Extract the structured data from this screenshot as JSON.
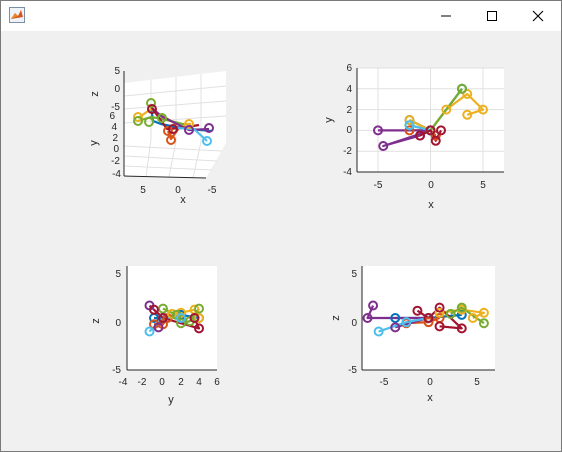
{
  "window": {
    "icon": "matlab-icon",
    "buttons": [
      "minimize-icon",
      "maximize-icon",
      "close-icon"
    ]
  },
  "plots": {
    "p1": {
      "z_label": "z",
      "y_label": "y",
      "x_label": "x",
      "z_ticks": [
        "5",
        "0",
        "-5"
      ],
      "y_ticks": [
        "6",
        "4",
        "2",
        "0",
        "-2",
        "-4"
      ],
      "x_ticks": [
        "5",
        "0",
        "-5"
      ]
    },
    "p2": {
      "y_label": "y",
      "x_label": "x",
      "y_ticks": [
        "6",
        "4",
        "2",
        "0",
        "-2",
        "-4"
      ],
      "x_ticks": [
        "-5",
        "0",
        "5"
      ]
    },
    "p3": {
      "z_label": "z",
      "y_label": "y",
      "z_ticks": [
        "5",
        "0",
        "-5"
      ],
      "y_ticks": [
        "-4",
        "-2",
        "0",
        "2",
        "4",
        "6"
      ]
    },
    "p4": {
      "z_label": "z",
      "x_label": "x",
      "z_ticks": [
        "5",
        "0",
        "-5"
      ],
      "x_ticks": [
        "-5",
        "0",
        "5"
      ]
    }
  },
  "chart_data": [
    {
      "type": "line",
      "view": "3d",
      "xlabel": "x",
      "ylabel": "y",
      "zlabel": "z",
      "xlim": [
        -6,
        7
      ],
      "ylim": [
        -4,
        6
      ],
      "zlim": [
        -5,
        5
      ],
      "grid": true
    },
    {
      "type": "line",
      "view": "xy",
      "xlabel": "x",
      "ylabel": "y",
      "xlim": [
        -7,
        7
      ],
      "ylim": [
        -4,
        6
      ],
      "grid": true,
      "series": [
        {
          "color": "#0072BD",
          "points": [
            [
              -2,
              1
            ],
            [
              0,
              0
            ],
            [
              3,
              4
            ]
          ]
        },
        {
          "color": "#D95319",
          "points": [
            [
              -2,
              0
            ],
            [
              0,
              0
            ],
            [
              0.5,
              -0.5
            ]
          ]
        },
        {
          "color": "#EDB120",
          "points": [
            [
              -2,
              1
            ],
            [
              0,
              0
            ],
            [
              1.5,
              2
            ],
            [
              3.5,
              3.5
            ],
            [
              5,
              2
            ],
            [
              3.5,
              1.5
            ]
          ]
        },
        {
          "color": "#7E2F8E",
          "points": [
            [
              -5,
              0
            ],
            [
              0,
              0
            ],
            [
              -4.5,
              -1.5
            ],
            [
              -1,
              -0.5
            ]
          ]
        },
        {
          "color": "#77AC30",
          "points": [
            [
              -2,
              0.5
            ],
            [
              0,
              0
            ],
            [
              3,
              4
            ]
          ]
        },
        {
          "color": "#4DBEEE",
          "points": [
            [
              -2,
              0.5
            ],
            [
              0,
              0
            ]
          ]
        },
        {
          "color": "#A2142F",
          "points": [
            [
              1,
              0
            ],
            [
              0.5,
              -1
            ],
            [
              0,
              0
            ],
            [
              -1,
              -0.5
            ]
          ]
        }
      ]
    },
    {
      "type": "line",
      "view": "yz",
      "xlabel": "y",
      "ylabel": "z",
      "xlim": [
        -4,
        6
      ],
      "ylim": [
        -5,
        5
      ],
      "series": [
        {
          "color": "#0072BD",
          "points": [
            [
              -1,
              0
            ],
            [
              0,
              0
            ],
            [
              2,
              0.3
            ],
            [
              4,
              0
            ]
          ]
        },
        {
          "color": "#D95319",
          "points": [
            [
              -1,
              -0.6
            ],
            [
              0,
              -0.6
            ],
            [
              0.5,
              0
            ]
          ]
        },
        {
          "color": "#EDB120",
          "points": [
            [
              1,
              0.4
            ],
            [
              2,
              0.5
            ],
            [
              3.5,
              0.8
            ],
            [
              4,
              0
            ]
          ]
        },
        {
          "color": "#7E2F8E",
          "points": [
            [
              -1.5,
              1.2
            ],
            [
              0,
              0
            ],
            [
              -0.5,
              -0.9
            ]
          ]
        },
        {
          "color": "#77AC30",
          "points": [
            [
              0,
              0.9
            ],
            [
              1.5,
              0.3
            ],
            [
              2,
              -0.5
            ],
            [
              3,
              -0.3
            ],
            [
              4,
              0.9
            ]
          ]
        },
        {
          "color": "#4DBEEE",
          "points": [
            [
              -1.5,
              -1.3
            ],
            [
              0,
              0
            ],
            [
              2,
              0
            ]
          ]
        },
        {
          "color": "#A2142F",
          "points": [
            [
              -1,
              0.8
            ],
            [
              0,
              0
            ],
            [
              4,
              -1
            ],
            [
              3.5,
              0
            ]
          ]
        }
      ]
    },
    {
      "type": "line",
      "view": "xz",
      "xlabel": "x",
      "ylabel": "z",
      "xlim": [
        -6,
        6
      ],
      "ylim": [
        -5,
        5
      ],
      "series": [
        {
          "color": "#0072BD",
          "points": [
            [
              -3,
              0
            ],
            [
              0,
              0
            ],
            [
              3,
              0.3
            ]
          ]
        },
        {
          "color": "#D95319",
          "points": [
            [
              -2,
              -0.5
            ],
            [
              0,
              -0.4
            ],
            [
              1,
              0
            ]
          ]
        },
        {
          "color": "#EDB120",
          "points": [
            [
              1,
              0.5
            ],
            [
              3,
              0.8
            ],
            [
              5,
              0.5
            ],
            [
              4,
              0
            ]
          ]
        },
        {
          "color": "#7E2F8E",
          "points": [
            [
              -5,
              1.2
            ],
            [
              -5.5,
              0
            ],
            [
              0,
              0
            ],
            [
              -3,
              -0.9
            ]
          ]
        },
        {
          "color": "#77AC30",
          "points": [
            [
              2,
              0.4
            ],
            [
              3,
              1
            ],
            [
              5,
              -0.5
            ]
          ]
        },
        {
          "color": "#4DBEEE",
          "points": [
            [
              -4.5,
              -1.3
            ],
            [
              -2,
              -0.4
            ],
            [
              0,
              0
            ]
          ]
        },
        {
          "color": "#A2142F",
          "points": [
            [
              -1,
              0.7
            ],
            [
              0,
              0
            ],
            [
              1,
              1
            ],
            [
              3,
              -1
            ],
            [
              1,
              -0.8
            ]
          ]
        }
      ]
    }
  ]
}
